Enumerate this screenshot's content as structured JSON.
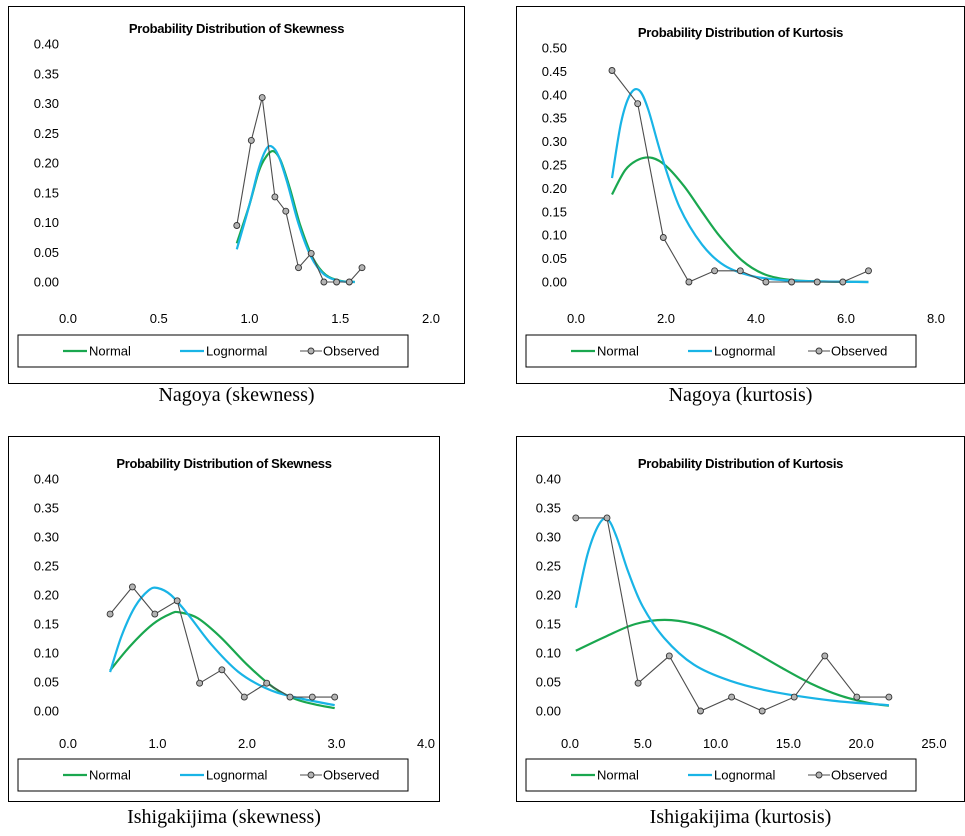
{
  "colors": {
    "normal": "#1aa74f",
    "lognormal": "#19b4e6",
    "observed": "#4d4d4d",
    "marker_fill": "#b3b3b3"
  },
  "chart_data": [
    {
      "type": "line",
      "title": "Probability Distribution of Skewness",
      "caption": "Nagoya (skewness)",
      "xlim": [
        0,
        2.0
      ],
      "ylim": [
        0,
        0.4
      ],
      "x_ticks": [
        "0.0",
        "0.5",
        "1.0",
        "1.5",
        "2.0"
      ],
      "y_ticks": [
        "0.00",
        "0.05",
        "0.10",
        "0.15",
        "0.20",
        "0.25",
        "0.30",
        "0.35",
        "0.40"
      ],
      "grid": false,
      "legend_position": "bottom",
      "series": [
        {
          "name": "Normal",
          "style": "smooth",
          "color": "#1aa74f",
          "x": [
            0.93,
            1.0,
            1.05,
            1.09,
            1.13,
            1.17,
            1.22,
            1.28,
            1.35,
            1.42,
            1.5,
            1.58
          ],
          "y": [
            0.065,
            0.13,
            0.185,
            0.21,
            0.22,
            0.205,
            0.16,
            0.095,
            0.04,
            0.012,
            0.002,
            0.0
          ]
        },
        {
          "name": "Lognormal",
          "style": "smooth",
          "color": "#19b4e6",
          "x": [
            0.93,
            1.0,
            1.05,
            1.09,
            1.12,
            1.16,
            1.21,
            1.27,
            1.34,
            1.41,
            1.49,
            1.58
          ],
          "y": [
            0.055,
            0.13,
            0.19,
            0.222,
            0.228,
            0.212,
            0.165,
            0.098,
            0.042,
            0.013,
            0.002,
            0.0
          ]
        },
        {
          "name": "Observed",
          "style": "markers",
          "color": "#4d4d4d",
          "x": [
            0.93,
            1.01,
            1.07,
            1.14,
            1.2,
            1.27,
            1.34,
            1.41,
            1.48,
            1.55,
            1.62
          ],
          "y": [
            0.095,
            0.238,
            0.31,
            0.143,
            0.119,
            0.024,
            0.048,
            0.0,
            0.0,
            0.0,
            0.024
          ]
        }
      ]
    },
    {
      "type": "line",
      "title": "Probability Distribution of Kurtosis",
      "caption": "Nagoya (kurtosis)",
      "xlim": [
        0,
        8.0
      ],
      "ylim": [
        0,
        0.5
      ],
      "x_ticks": [
        "0.0",
        "2.0",
        "4.0",
        "6.0",
        "8.0"
      ],
      "y_ticks": [
        "0.00",
        "0.05",
        "0.10",
        "0.15",
        "0.20",
        "0.25",
        "0.30",
        "0.35",
        "0.40",
        "0.45",
        "0.50"
      ],
      "grid": false,
      "legend_position": "bottom",
      "series": [
        {
          "name": "Normal",
          "style": "smooth",
          "color": "#1aa74f",
          "x": [
            0.8,
            1.1,
            1.4,
            1.7,
            2.0,
            2.4,
            2.8,
            3.2,
            3.7,
            4.2,
            4.8,
            5.5,
            6.5
          ],
          "y": [
            0.187,
            0.24,
            0.262,
            0.265,
            0.248,
            0.205,
            0.15,
            0.097,
            0.045,
            0.016,
            0.004,
            0.001,
            0.0
          ]
        },
        {
          "name": "Lognormal",
          "style": "smooth",
          "color": "#19b4e6",
          "x": [
            0.8,
            1.0,
            1.2,
            1.4,
            1.6,
            1.9,
            2.3,
            2.8,
            3.3,
            3.9,
            4.6,
            5.5,
            6.5
          ],
          "y": [
            0.222,
            0.34,
            0.4,
            0.41,
            0.37,
            0.27,
            0.16,
            0.08,
            0.035,
            0.013,
            0.004,
            0.001,
            0.0
          ]
        },
        {
          "name": "Observed",
          "style": "markers",
          "color": "#4d4d4d",
          "x": [
            0.8,
            1.37,
            1.94,
            2.51,
            3.08,
            3.65,
            4.22,
            4.79,
            5.36,
            5.93,
            6.5
          ],
          "y": [
            0.452,
            0.381,
            0.095,
            0.0,
            0.024,
            0.024,
            0.0,
            0.0,
            0.0,
            0.0,
            0.024
          ]
        }
      ]
    },
    {
      "type": "line",
      "title": "Probability Distribution of Skewness",
      "caption": "Ishigakijima (skewness)",
      "xlim": [
        0,
        4.0
      ],
      "ylim": [
        0,
        0.4
      ],
      "x_ticks": [
        "0.0",
        "1.0",
        "2.0",
        "3.0",
        "4.0"
      ],
      "y_ticks": [
        "0.00",
        "0.05",
        "0.10",
        "0.15",
        "0.20",
        "0.25",
        "0.30",
        "0.35",
        "0.40"
      ],
      "grid": false,
      "legend_position": "bottom",
      "series": [
        {
          "name": "Normal",
          "style": "smooth",
          "color": "#1aa74f",
          "x": [
            0.47,
            0.7,
            0.95,
            1.15,
            1.25,
            1.45,
            1.7,
            2.0,
            2.3,
            2.55,
            2.8,
            2.98
          ],
          "y": [
            0.07,
            0.113,
            0.15,
            0.168,
            0.17,
            0.16,
            0.128,
            0.08,
            0.04,
            0.02,
            0.01,
            0.005
          ]
        },
        {
          "name": "Lognormal",
          "style": "smooth",
          "color": "#19b4e6",
          "x": [
            0.47,
            0.6,
            0.75,
            0.9,
            1.0,
            1.15,
            1.35,
            1.6,
            1.9,
            2.2,
            2.5,
            2.98
          ],
          "y": [
            0.067,
            0.13,
            0.18,
            0.208,
            0.212,
            0.2,
            0.165,
            0.115,
            0.068,
            0.04,
            0.025,
            0.01
          ]
        },
        {
          "name": "Observed",
          "style": "markers",
          "color": "#4d4d4d",
          "x": [
            0.47,
            0.72,
            0.97,
            1.22,
            1.47,
            1.72,
            1.97,
            2.22,
            2.48,
            2.73,
            2.98
          ],
          "y": [
            0.167,
            0.214,
            0.167,
            0.19,
            0.048,
            0.071,
            0.024,
            0.048,
            0.024,
            0.024,
            0.024
          ]
        }
      ]
    },
    {
      "type": "line",
      "title": "Probability Distribution of Kurtosis",
      "caption": "Ishigakijima (kurtosis)",
      "xlim": [
        0,
        25.0
      ],
      "ylim": [
        0,
        0.4
      ],
      "x_ticks": [
        "0.0",
        "5.0",
        "10.0",
        "15.0",
        "20.0",
        "25.0"
      ],
      "y_ticks": [
        "0.00",
        "0.05",
        "0.10",
        "0.15",
        "0.20",
        "0.25",
        "0.30",
        "0.35",
        "0.40"
      ],
      "grid": false,
      "legend_position": "bottom",
      "series": [
        {
          "name": "Normal",
          "style": "smooth",
          "color": "#1aa74f",
          "x": [
            0.4,
            2.5,
            4.5,
            6.5,
            8.5,
            10.5,
            12.5,
            14.5,
            16.5,
            18.5,
            20.5,
            21.9
          ],
          "y": [
            0.104,
            0.129,
            0.15,
            0.157,
            0.15,
            0.131,
            0.104,
            0.075,
            0.048,
            0.027,
            0.014,
            0.009
          ]
        },
        {
          "name": "Lognormal",
          "style": "smooth",
          "color": "#19b4e6",
          "x": [
            0.4,
            1.2,
            2.0,
            2.6,
            3.2,
            4.0,
            5.0,
            6.5,
            8.5,
            11.0,
            14.0,
            18.0,
            21.9
          ],
          "y": [
            0.178,
            0.27,
            0.322,
            0.33,
            0.3,
            0.24,
            0.18,
            0.125,
            0.08,
            0.052,
            0.033,
            0.018,
            0.01
          ]
        },
        {
          "name": "Observed",
          "style": "markers",
          "color": "#4d4d4d",
          "x": [
            0.4,
            2.54,
            4.68,
            6.82,
            8.96,
            11.1,
            13.2,
            15.4,
            17.5,
            19.7,
            21.9
          ],
          "y": [
            0.333,
            0.333,
            0.048,
            0.095,
            0.0,
            0.024,
            0.0,
            0.024,
            0.095,
            0.024,
            0.024
          ]
        }
      ]
    }
  ]
}
